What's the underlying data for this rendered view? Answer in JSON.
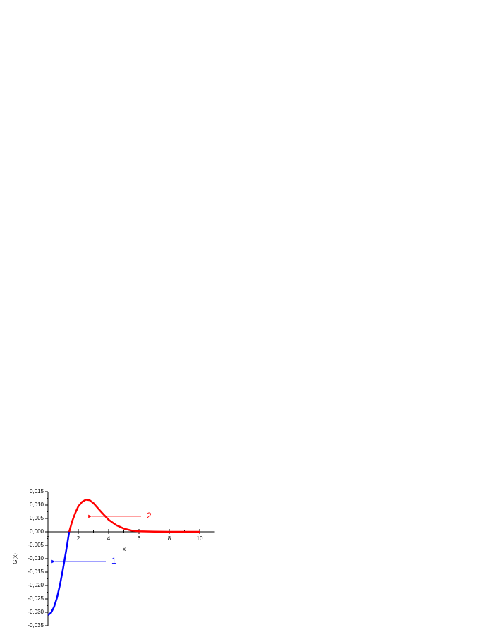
{
  "chart_data": {
    "type": "line",
    "x_label": "x",
    "y_label": "G(x)",
    "xlim": [
      0,
      11
    ],
    "xticks": [
      0,
      2,
      4,
      6,
      8,
      10
    ],
    "ylim": [
      -0.035,
      0.015
    ],
    "yticks": [
      {
        "value": 0.015,
        "label": "0,015"
      },
      {
        "value": 0.01,
        "label": "0,010"
      },
      {
        "value": 0.005,
        "label": "0,005"
      },
      {
        "value": 0,
        "label": "0,000"
      },
      {
        "value": -0.005,
        "label": "-0,005"
      },
      {
        "value": -0.01,
        "label": "-0,010"
      },
      {
        "value": -0.015,
        "label": "-0,015"
      },
      {
        "value": -0.02,
        "label": "-0,020"
      },
      {
        "value": -0.025,
        "label": "-0,025"
      },
      {
        "value": -0.03,
        "label": "-0,030"
      },
      {
        "value": -0.035,
        "label": "-0,035"
      }
    ],
    "series": [
      {
        "name": "1",
        "color": "#0000ff",
        "x": [
          0,
          0.2,
          0.4,
          0.6,
          0.8,
          1.0,
          1.2,
          1.4
        ],
        "values": [
          -0.031,
          -0.0302,
          -0.028,
          -0.0245,
          -0.0195,
          -0.0135,
          -0.007,
          0
        ]
      },
      {
        "name": "2",
        "color": "#ff0000",
        "x": [
          1.4,
          1.6,
          1.8,
          2.0,
          2.25,
          2.5,
          2.75,
          3.0,
          3.5,
          4.0,
          4.5,
          5.0,
          5.5,
          6.0,
          7.0,
          8.0,
          10.0
        ],
        "values": [
          0,
          0.004,
          0.007,
          0.0095,
          0.0112,
          0.012,
          0.0118,
          0.0107,
          0.0075,
          0.0045,
          0.0025,
          0.0012,
          0.0005,
          0.0002,
          5e-05,
          0,
          0
        ]
      }
    ]
  }
}
